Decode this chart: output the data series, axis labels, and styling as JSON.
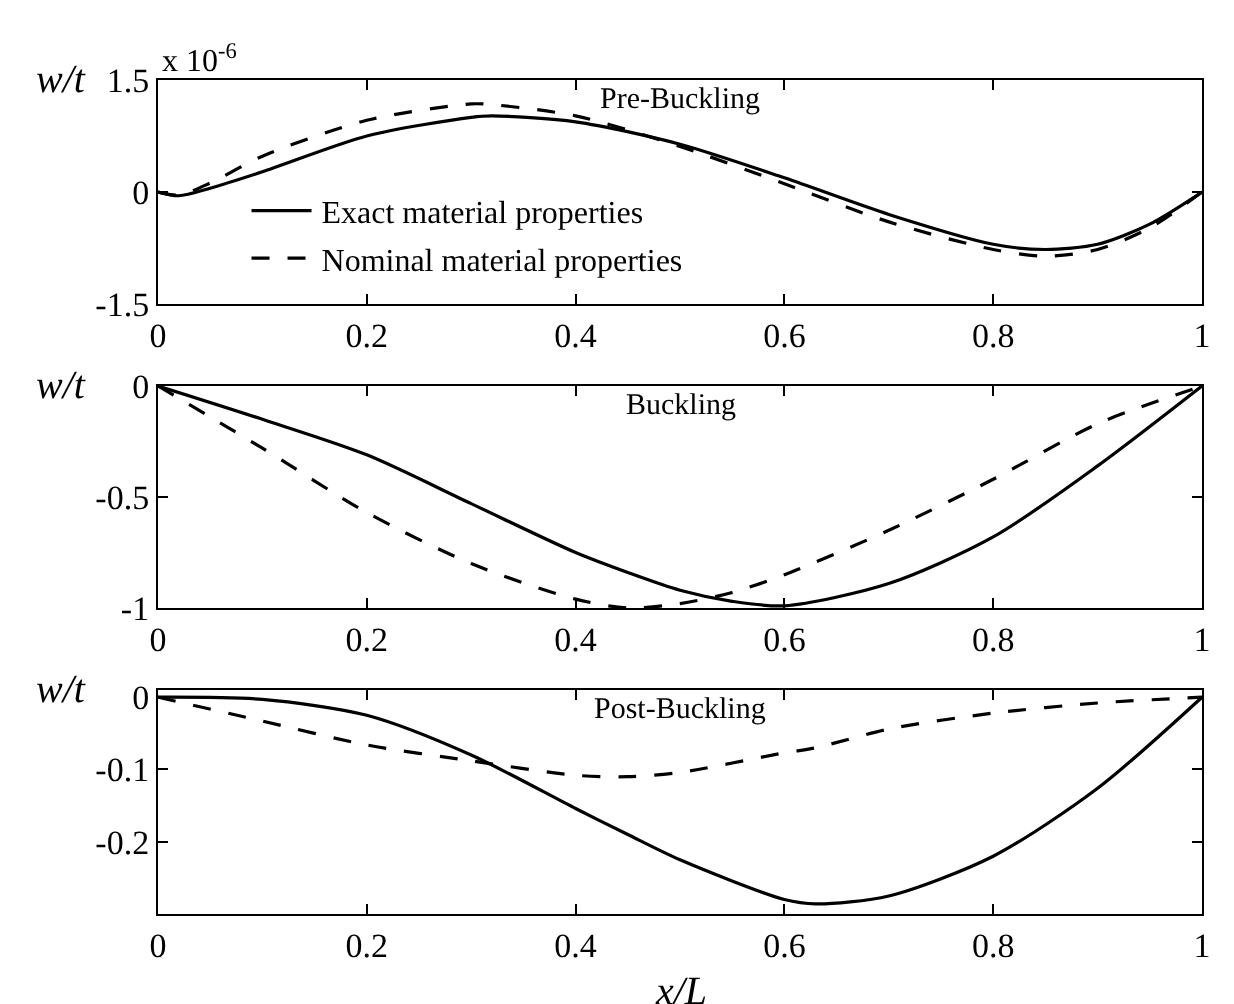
{
  "chart_data": [
    {
      "type": "line",
      "title": "Pre-Buckling",
      "ylabel": "w/t",
      "annotations": [
        "x 10$^{-6}$"
      ],
      "xlim": [
        0,
        1
      ],
      "xticks": [
        0,
        0.2,
        0.4,
        0.6,
        0.8,
        1
      ],
      "ylim": [
        -1.5,
        1.5
      ],
      "yticks": [
        -1.5,
        0,
        1.5
      ],
      "legend": "bottom left",
      "x": [
        0,
        0.02,
        0.05,
        0.1,
        0.2,
        0.3,
        0.32,
        0.4,
        0.5,
        0.6,
        0.7,
        0.8,
        0.85,
        0.9,
        0.95,
        1
      ],
      "series": [
        {
          "name": "Exact material properties",
          "color": "#000000",
          "line_style": "solid",
          "values": [
            0,
            -0.05,
            0.05,
            0.27,
            0.75,
            1.0,
            1.02,
            0.94,
            0.64,
            0.19,
            -0.3,
            -0.7,
            -0.77,
            -0.7,
            -0.43,
            0
          ]
        },
        {
          "name": "Nominal material properties",
          "color": "#000000",
          "line_style": "dashed",
          "values": [
            0,
            -0.04,
            0.12,
            0.48,
            0.96,
            1.18,
            1.17,
            1.02,
            0.61,
            0.11,
            -0.4,
            -0.77,
            -0.86,
            -0.77,
            -0.48,
            0
          ]
        }
      ]
    },
    {
      "type": "line",
      "title": "Buckling",
      "ylabel": "w/t",
      "xlim": [
        0,
        1
      ],
      "xticks": [
        0,
        0.2,
        0.4,
        0.6,
        0.8,
        1
      ],
      "ylim": [
        -1,
        0
      ],
      "yticks": [
        -1,
        -0.5,
        0
      ],
      "x": [
        0,
        0.1,
        0.2,
        0.3,
        0.4,
        0.45,
        0.5,
        0.55,
        0.6,
        0.7,
        0.8,
        0.9,
        1
      ],
      "series": [
        {
          "color": "#000000",
          "line_style": "solid",
          "values": [
            0,
            -0.15,
            -0.31,
            -0.53,
            -0.75,
            -0.84,
            -0.92,
            -0.97,
            -0.99,
            -0.89,
            -0.68,
            -0.36,
            0
          ]
        },
        {
          "color": "#000000",
          "line_style": "dashed",
          "values": [
            0,
            -0.28,
            -0.57,
            -0.8,
            -0.96,
            -1.0,
            -0.98,
            -0.93,
            -0.85,
            -0.65,
            -0.42,
            -0.17,
            0
          ]
        }
      ]
    },
    {
      "type": "line",
      "title": "Post-Buckling",
      "xlabel": "x/L",
      "ylabel": "w/t",
      "xlim": [
        0,
        1
      ],
      "xticks": [
        0,
        0.2,
        0.4,
        0.6,
        0.8,
        1
      ],
      "ylim": [
        -0.3,
        0.01
      ],
      "yticks": [
        -0.2,
        -0.1,
        0
      ],
      "x": [
        0,
        0.1,
        0.2,
        0.3,
        0.4,
        0.45,
        0.5,
        0.6,
        0.63,
        0.7,
        0.8,
        0.9,
        1
      ],
      "series": [
        {
          "color": "#000000",
          "line_style": "solid",
          "values": [
            0,
            -0.003,
            -0.025,
            -0.08,
            -0.154,
            -0.19,
            -0.225,
            -0.28,
            -0.286,
            -0.275,
            -0.22,
            -0.126,
            0
          ]
        },
        {
          "color": "#000000",
          "line_style": "dashed",
          "values": [
            0,
            -0.033,
            -0.066,
            -0.088,
            -0.108,
            -0.11,
            -0.104,
            -0.077,
            -0.07,
            -0.044,
            -0.022,
            -0.008,
            0
          ]
        }
      ]
    }
  ]
}
